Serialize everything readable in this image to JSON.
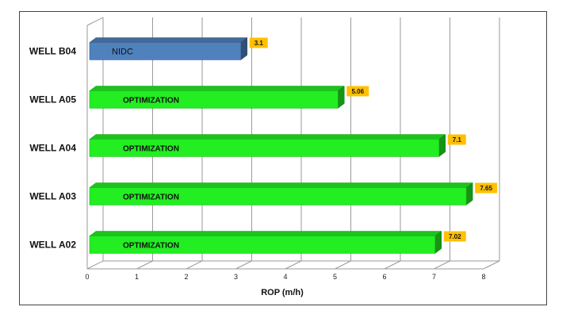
{
  "chart_data": {
    "type": "bar",
    "orientation": "horizontal",
    "style": "3d",
    "categories": [
      "WELL B04",
      "WELL A05",
      "WELL A04",
      "WELL A03",
      "WELL A02"
    ],
    "values": [
      3.1,
      5.06,
      7.1,
      7.65,
      7.02
    ],
    "data_labels": [
      "3.1",
      "5.06",
      "7.1",
      "7.65",
      "7.02"
    ],
    "bar_labels": [
      "NIDC",
      "OPTIMIZATION",
      "OPTIMIZATION",
      "OPTIMIZATION",
      "OPTIMIZATION"
    ],
    "bar_colors": [
      "#4f81bd",
      "#22ee22",
      "#22ee22",
      "#22ee22",
      "#22ee22"
    ],
    "data_label_color": "#ffc000",
    "title": "",
    "xlabel": "ROP (m/h)",
    "ylabel": "",
    "xlim": [
      0,
      8
    ],
    "x_ticks": [
      "0",
      "1",
      "2",
      "3",
      "4",
      "5",
      "6",
      "7",
      "8"
    ],
    "grid": true,
    "legend": "none"
  }
}
